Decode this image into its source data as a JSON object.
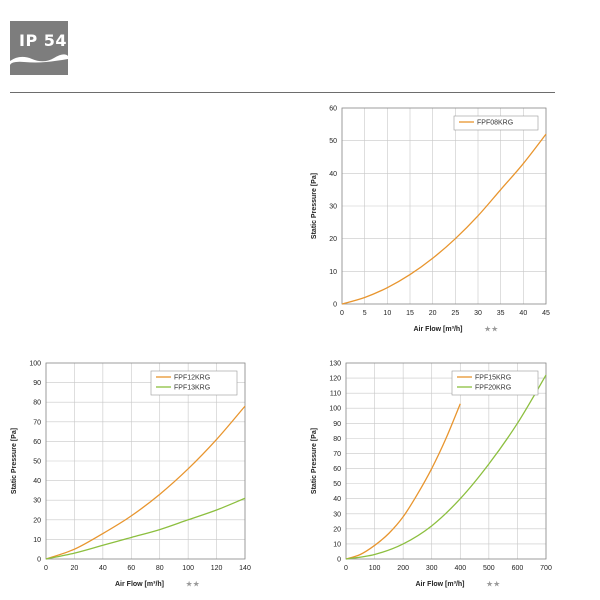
{
  "header": {
    "badge_text": "IP 54"
  },
  "colors": {
    "orange": "#e8952e",
    "green": "#8cbf3f",
    "grid": "#c8c8c8",
    "frame": "#8a8a8a"
  },
  "chart_data": [
    {
      "type": "line",
      "xlabel": "Air Flow [m³/h]",
      "xlabel_suffix": "★★",
      "ylabel": "Static Pressure [Pa]",
      "xlim": [
        0,
        45
      ],
      "ylim": [
        0,
        60
      ],
      "xticks": [
        0,
        5,
        10,
        15,
        20,
        25,
        30,
        35,
        40,
        45
      ],
      "yticks": [
        0,
        10,
        20,
        30,
        40,
        50,
        60
      ],
      "legend": "top-right",
      "grid": true,
      "series": [
        {
          "name": "FPF08KRG",
          "color": "#e8952e",
          "x": [
            0,
            5,
            10,
            15,
            20,
            25,
            30,
            35,
            40,
            45
          ],
          "y": [
            0,
            2,
            5,
            9,
            14,
            20,
            27,
            35,
            43,
            52
          ]
        }
      ]
    },
    {
      "type": "line",
      "xlabel": "Air Flow [m³/h]",
      "xlabel_suffix": "★★",
      "ylabel": "Static Pressure [Pa]",
      "xlim": [
        0,
        140
      ],
      "ylim": [
        0,
        100
      ],
      "xticks": [
        0,
        20,
        40,
        60,
        80,
        100,
        120,
        140
      ],
      "yticks": [
        0,
        10,
        20,
        30,
        40,
        50,
        60,
        70,
        80,
        90,
        100
      ],
      "legend": "top-right",
      "grid": true,
      "series": [
        {
          "name": "FPF12KRG",
          "color": "#e8952e",
          "x": [
            0,
            20,
            40,
            60,
            80,
            100,
            120,
            140
          ],
          "y": [
            0,
            5,
            13,
            22,
            33,
            46,
            61,
            78
          ]
        },
        {
          "name": "FPF13KRG",
          "color": "#8cbf3f",
          "x": [
            0,
            20,
            40,
            60,
            80,
            100,
            120,
            140
          ],
          "y": [
            0,
            3,
            7,
            11,
            15,
            20,
            25,
            31
          ]
        }
      ]
    },
    {
      "type": "line",
      "xlabel": "Air Flow [m³/h]",
      "xlabel_suffix": "★★",
      "ylabel": "Static Pressure [Pa]",
      "xlim": [
        0,
        700
      ],
      "ylim": [
        0,
        130
      ],
      "xticks": [
        0,
        100,
        200,
        300,
        400,
        500,
        600,
        700
      ],
      "yticks": [
        0,
        10,
        20,
        30,
        40,
        50,
        60,
        70,
        80,
        90,
        100,
        110,
        120,
        130
      ],
      "legend": "top-right",
      "grid": true,
      "series": [
        {
          "name": "FPF15KRG",
          "color": "#e8952e",
          "x": [
            0,
            50,
            100,
            150,
            200,
            250,
            300,
            350,
            400
          ],
          "y": [
            0,
            3,
            9,
            17,
            28,
            43,
            60,
            80,
            103
          ]
        },
        {
          "name": "FPF20KRG",
          "color": "#8cbf3f",
          "x": [
            0,
            100,
            200,
            300,
            400,
            500,
            600,
            700
          ],
          "y": [
            0,
            3,
            10,
            22,
            40,
            63,
            90,
            122
          ]
        }
      ]
    }
  ]
}
